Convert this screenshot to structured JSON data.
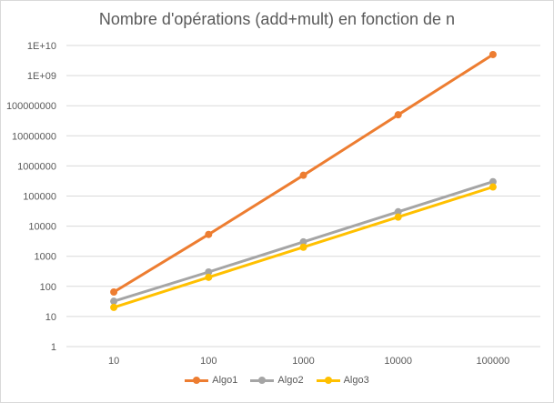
{
  "chart_data": {
    "type": "line",
    "title": "Nombre d'opérations (add+mult) en fonction de n",
    "xlabel": "",
    "ylabel": "",
    "y_scale": "log",
    "ylim": [
      1,
      10000000000
    ],
    "grid": true,
    "legend_position": "bottom",
    "categories": [
      "10",
      "100",
      "1000",
      "10000",
      "100000"
    ],
    "y_ticks": [
      {
        "value": 1,
        "label": "1"
      },
      {
        "value": 10,
        "label": "10"
      },
      {
        "value": 100,
        "label": "100"
      },
      {
        "value": 1000,
        "label": "1000"
      },
      {
        "value": 10000,
        "label": "10000"
      },
      {
        "value": 100000,
        "label": "100000"
      },
      {
        "value": 1000000,
        "label": "1000000"
      },
      {
        "value": 10000000,
        "label": "10000000"
      },
      {
        "value": 100000000,
        "label": "100000000"
      },
      {
        "value": 1000000000,
        "label": "1E+09"
      },
      {
        "value": 10000000000,
        "label": "1E+10"
      }
    ],
    "series": [
      {
        "name": "Algo1",
        "color": "#ed7d31",
        "values": [
          65,
          5300,
          490000,
          50000000,
          5000000000
        ]
      },
      {
        "name": "Algo2",
        "color": "#a5a5a5",
        "values": [
          32,
          300,
          3000,
          30000,
          300000
        ]
      },
      {
        "name": "Algo3",
        "color": "#ffc000",
        "values": [
          20,
          200,
          2000,
          20000,
          200000
        ]
      }
    ]
  }
}
